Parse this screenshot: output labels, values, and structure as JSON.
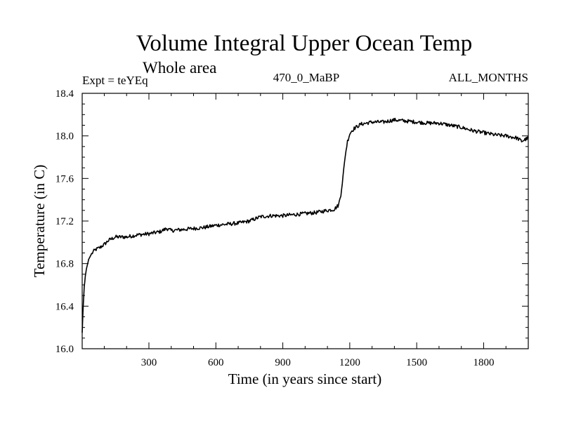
{
  "chart_data": {
    "type": "line",
    "title": "Volume Integral Upper Ocean Temp",
    "subtitle": "Whole area",
    "experiment": "Expt = teYEq",
    "run_label": "470_0_MaBP",
    "period_label": "ALL_MONTHS",
    "xlabel": "Time (in years since start)",
    "ylabel": "Temperature (in C)",
    "xlim": [
      1,
      2000
    ],
    "ylim": [
      16.0,
      18.4
    ],
    "x_ticks": [
      300,
      600,
      900,
      1200,
      1500,
      1800
    ],
    "x_tick_labels": [
      "300",
      "600",
      "900",
      "1200",
      "1500",
      "1800"
    ],
    "y_ticks": [
      16.0,
      16.4,
      16.8,
      17.2,
      17.6,
      18.0,
      18.4
    ],
    "y_tick_labels": [
      "16.0",
      "16.4",
      "16.8",
      "17.2",
      "17.6",
      "18.0",
      "18.4"
    ],
    "x_minor_step": 100,
    "y_minor_step": 0.1,
    "grid": false,
    "series": [
      {
        "name": "Volume integral upper ocean temperature",
        "x": [
          1,
          5,
          10,
          15,
          20,
          30,
          40,
          50,
          60,
          70,
          80,
          100,
          120,
          150,
          200,
          250,
          300,
          350,
          380,
          400,
          450,
          500,
          550,
          600,
          650,
          700,
          750,
          800,
          850,
          900,
          950,
          1000,
          1050,
          1100,
          1130,
          1150,
          1160,
          1170,
          1180,
          1190,
          1200,
          1210,
          1220,
          1250,
          1300,
          1350,
          1400,
          1450,
          1500,
          1550,
          1600,
          1650,
          1700,
          1750,
          1800,
          1850,
          1900,
          1950,
          1970,
          2000
        ],
        "y": [
          16.15,
          16.38,
          16.58,
          16.68,
          16.75,
          16.84,
          16.88,
          16.91,
          16.93,
          16.94,
          16.95,
          16.98,
          17.02,
          17.05,
          17.05,
          17.07,
          17.08,
          17.1,
          17.13,
          17.11,
          17.12,
          17.13,
          17.14,
          17.16,
          17.17,
          17.18,
          17.2,
          17.24,
          17.25,
          17.25,
          17.26,
          17.27,
          17.28,
          17.3,
          17.31,
          17.35,
          17.45,
          17.62,
          17.82,
          17.95,
          18.02,
          18.05,
          18.07,
          18.11,
          18.13,
          18.13,
          18.15,
          18.14,
          18.13,
          18.12,
          18.12,
          18.1,
          18.08,
          18.05,
          18.03,
          18.01,
          18.0,
          17.98,
          17.95,
          17.98
        ]
      }
    ]
  }
}
